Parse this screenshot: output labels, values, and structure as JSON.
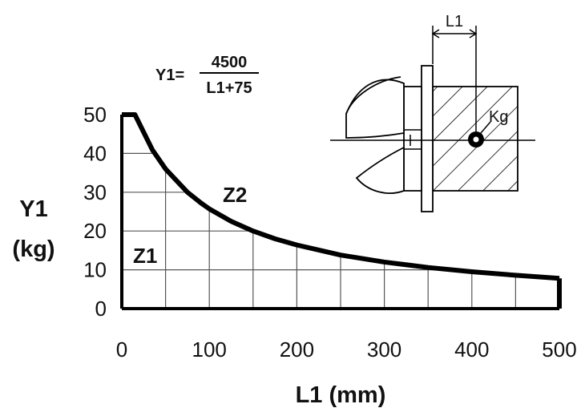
{
  "chart_data": {
    "type": "line",
    "xlabel": "L1 (mm)",
    "ylabel_line1": "Y1",
    "ylabel_line2": "(kg)",
    "xlim": [
      0,
      500
    ],
    "ylim": [
      0,
      50
    ],
    "x_ticks": [
      "0",
      "100",
      "200",
      "300",
      "400",
      "500"
    ],
    "y_ticks": [
      "0",
      "10",
      "20",
      "30",
      "40",
      "50"
    ],
    "grid": true,
    "grid_step_x": 50,
    "grid_step_y": 10,
    "formula": {
      "lhs": "Y1=",
      "numerator": "4500",
      "denominator": "L1+75"
    },
    "zone_labels": {
      "inside": "Z1",
      "outside": "Z2"
    },
    "series": [
      {
        "x": [
          0,
          15,
          35,
          50,
          75,
          90,
          100,
          125,
          150,
          175,
          200,
          250,
          300,
          350,
          400,
          450,
          500
        ],
        "values": [
          50,
          50,
          40.9,
          36,
          30,
          27.3,
          25.7,
          22.5,
          20,
          18,
          16.4,
          13.8,
          12,
          10.6,
          9.5,
          8.6,
          7.8
        ]
      }
    ]
  },
  "diagram": {
    "dimension_label": "L1",
    "load_label": "Kg"
  }
}
